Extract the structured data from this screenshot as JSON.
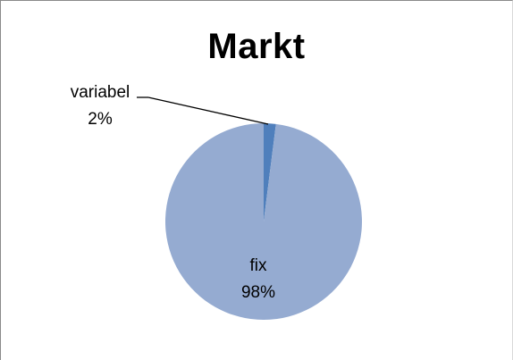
{
  "chart_data": {
    "type": "pie",
    "title": "Markt",
    "slices": [
      {
        "label": "fix",
        "value": 98,
        "percent_label": "98%",
        "color": "#95abd1"
      },
      {
        "label": "variabel",
        "value": 2,
        "percent_label": "2%",
        "color": "#4f7fbc"
      }
    ],
    "start_angle_deg": 0,
    "direction": "clockwise-from-top, smaller slice first"
  }
}
